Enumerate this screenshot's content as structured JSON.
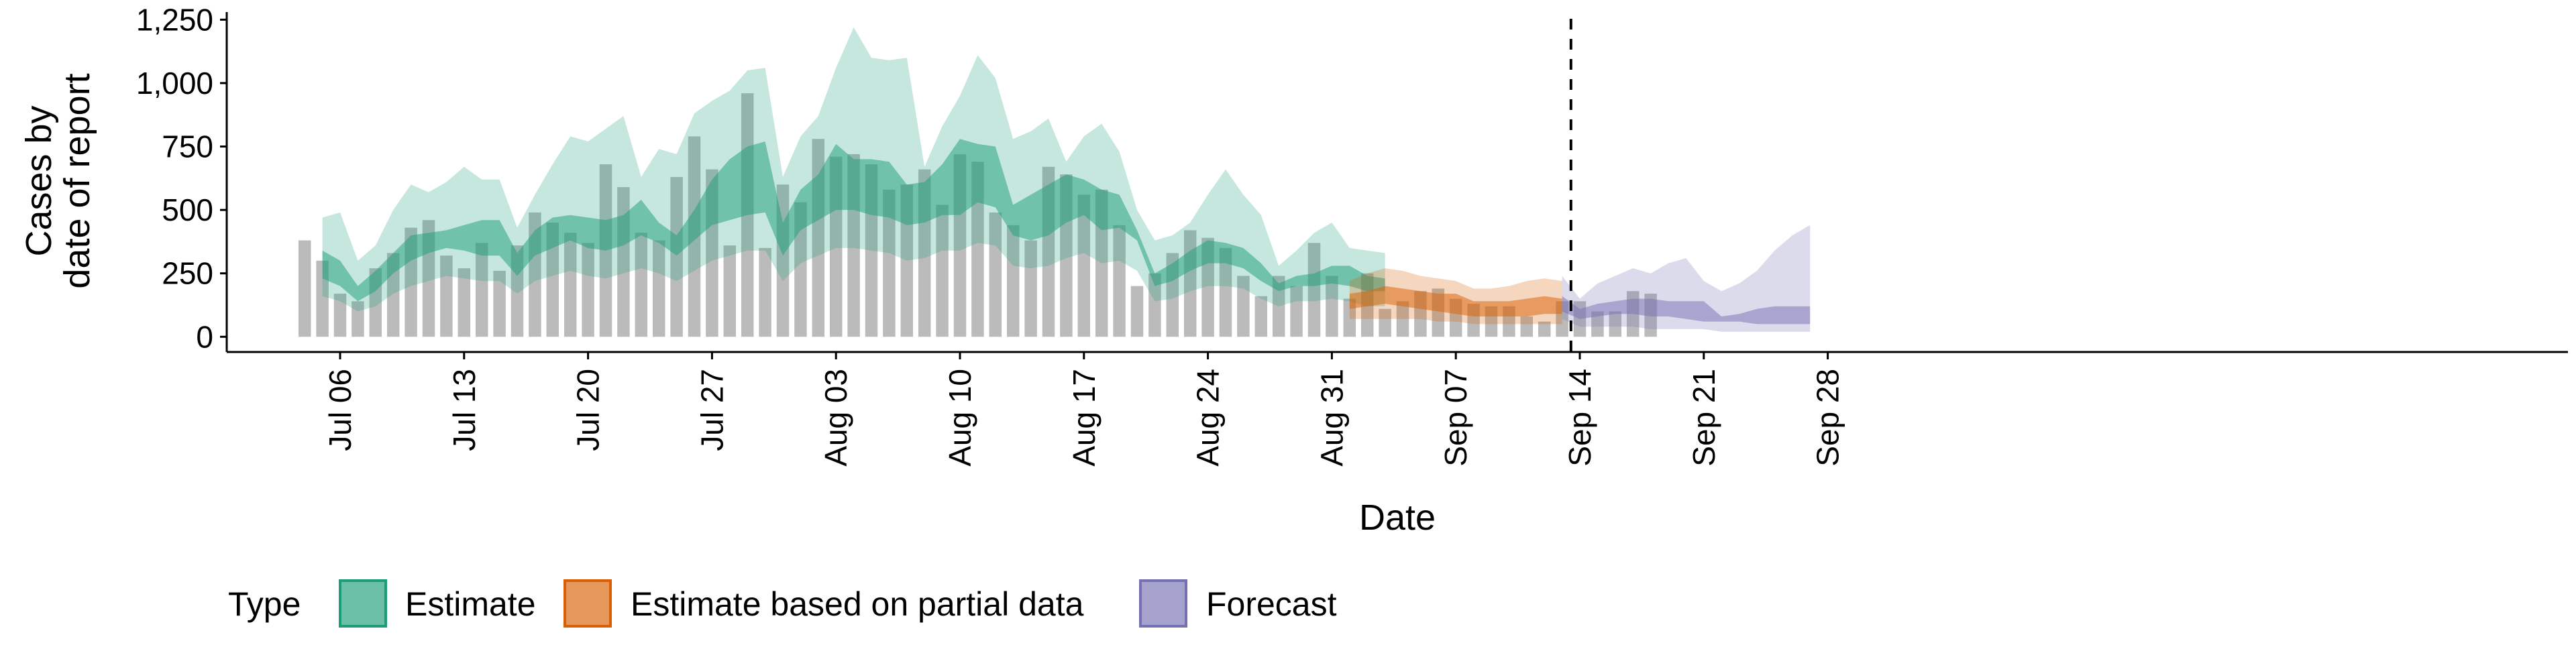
{
  "chart_data": {
    "type": "bar",
    "xlabel": "Date",
    "ylabel_lines": [
      "Cases by",
      "date of report"
    ],
    "ylim": [
      -60,
      1280
    ],
    "yticks": [
      0,
      250,
      500,
      750,
      1000,
      1250
    ],
    "ytick_labels": [
      "0",
      "250",
      "500",
      "750",
      "1,000",
      "1,250"
    ],
    "x_start": "2020-07-04",
    "xlim": [
      "2020-07-01",
      "2020-09-30"
    ],
    "xticks": [
      {
        "date": "2020-07-06",
        "label": "Jul 06"
      },
      {
        "date": "2020-07-13",
        "label": "Jul 13"
      },
      {
        "date": "2020-07-20",
        "label": "Jul 20"
      },
      {
        "date": "2020-07-27",
        "label": "Jul 27"
      },
      {
        "date": "2020-08-03",
        "label": "Aug 03"
      },
      {
        "date": "2020-08-10",
        "label": "Aug 10"
      },
      {
        "date": "2020-08-17",
        "label": "Aug 17"
      },
      {
        "date": "2020-08-24",
        "label": "Aug 24"
      },
      {
        "date": "2020-08-31",
        "label": "Aug 31"
      },
      {
        "date": "2020-09-07",
        "label": "Sep 07"
      },
      {
        "date": "2020-09-14",
        "label": "Sep 14"
      },
      {
        "date": "2020-09-21",
        "label": "Sep 21"
      },
      {
        "date": "2020-09-28",
        "label": "Sep 28"
      }
    ],
    "vline_date": "2020-09-13",
    "bars": [
      380,
      300,
      170,
      140,
      270,
      330,
      430,
      460,
      320,
      270,
      370,
      260,
      360,
      490,
      450,
      410,
      370,
      680,
      590,
      410,
      380,
      630,
      790,
      660,
      360,
      960,
      350,
      600,
      530,
      780,
      710,
      720,
      680,
      580,
      600,
      660,
      520,
      720,
      690,
      490,
      440,
      380,
      670,
      640,
      560,
      580,
      440,
      200,
      250,
      330,
      420,
      390,
      350,
      240,
      160,
      240,
      200,
      370,
      240,
      150,
      250,
      110,
      140,
      180,
      190,
      150,
      130,
      120,
      120,
      80,
      60,
      140,
      140,
      100,
      100,
      180,
      170
    ],
    "series": [
      {
        "name": "Estimate",
        "color": "#1B9E77",
        "start": "2020-07-05",
        "inner_lower": [
          230,
          200,
          140,
          180,
          250,
          300,
          330,
          350,
          340,
          320,
          320,
          240,
          320,
          350,
          380,
          350,
          340,
          360,
          400,
          370,
          320,
          380,
          440,
          460,
          480,
          490,
          320,
          420,
          460,
          500,
          500,
          480,
          470,
          440,
          450,
          480,
          480,
          530,
          510,
          400,
          380,
          400,
          450,
          480,
          420,
          430,
          380,
          200,
          220,
          260,
          290,
          290,
          270,
          220,
          180,
          200,
          200,
          210,
          200,
          180,
          180
        ],
        "inner_upper": [
          340,
          300,
          200,
          260,
          330,
          400,
          410,
          420,
          440,
          460,
          460,
          330,
          420,
          470,
          480,
          470,
          460,
          480,
          540,
          450,
          400,
          500,
          620,
          700,
          750,
          770,
          450,
          580,
          640,
          760,
          700,
          700,
          690,
          600,
          610,
          680,
          780,
          760,
          750,
          520,
          560,
          600,
          640,
          620,
          580,
          560,
          420,
          250,
          290,
          340,
          380,
          370,
          350,
          290,
          210,
          240,
          250,
          280,
          280,
          240,
          230
        ],
        "outer_lower": [
          160,
          140,
          100,
          120,
          170,
          200,
          220,
          240,
          230,
          220,
          220,
          170,
          220,
          240,
          260,
          240,
          230,
          250,
          270,
          250,
          220,
          260,
          300,
          320,
          340,
          340,
          220,
          290,
          320,
          350,
          350,
          340,
          330,
          300,
          310,
          340,
          340,
          370,
          360,
          280,
          270,
          280,
          310,
          330,
          290,
          300,
          260,
          140,
          150,
          180,
          200,
          200,
          190,
          150,
          120,
          140,
          140,
          150,
          140,
          120,
          120
        ],
        "outer_upper": [
          470,
          490,
          300,
          360,
          500,
          600,
          570,
          610,
          670,
          620,
          620,
          430,
          560,
          680,
          790,
          770,
          820,
          870,
          630,
          740,
          720,
          880,
          930,
          970,
          1050,
          1060,
          630,
          790,
          870,
          1060,
          1220,
          1100,
          1090,
          1100,
          670,
          830,
          950,
          1110,
          1020,
          780,
          810,
          860,
          690,
          790,
          840,
          730,
          500,
          380,
          400,
          450,
          560,
          660,
          560,
          480,
          280,
          340,
          410,
          450,
          350,
          340,
          330
        ]
      },
      {
        "name": "Estimate based on partial data",
        "color": "#D95F02",
        "start": "2020-09-01",
        "inner_lower": [
          110,
          120,
          130,
          120,
          110,
          100,
          90,
          80,
          80,
          80,
          80,
          90,
          90
        ],
        "inner_upper": [
          170,
          180,
          200,
          190,
          180,
          170,
          170,
          140,
          140,
          140,
          150,
          160,
          150
        ],
        "outer_lower": [
          70,
          70,
          70,
          70,
          70,
          60,
          60,
          50,
          50,
          50,
          50,
          50,
          50
        ],
        "outer_upper": [
          220,
          250,
          270,
          260,
          240,
          230,
          220,
          190,
          190,
          200,
          220,
          230,
          220
        ]
      },
      {
        "name": "Forecast",
        "color": "#7570B3",
        "start": "2020-09-13",
        "inner_lower": [
          100,
          70,
          80,
          90,
          90,
          80,
          80,
          70,
          60,
          60,
          60,
          50,
          50,
          50,
          50
        ],
        "inner_upper": [
          160,
          110,
          130,
          140,
          150,
          150,
          140,
          140,
          140,
          80,
          90,
          110,
          120,
          120,
          120
        ],
        "outer_lower": [
          70,
          40,
          40,
          40,
          40,
          30,
          30,
          30,
          30,
          20,
          20,
          20,
          20,
          20,
          20
        ],
        "outer_upper": [
          240,
          150,
          210,
          240,
          270,
          250,
          290,
          310,
          220,
          180,
          210,
          260,
          340,
          400,
          440
        ]
      }
    ],
    "legend": {
      "position": "bottom",
      "title": "Type",
      "items": [
        {
          "label": "Estimate",
          "color": "#1B9E77"
        },
        {
          "label": "Estimate based on partial data",
          "color": "#D95F02"
        },
        {
          "label": "Forecast",
          "color": "#7570B3"
        }
      ]
    }
  }
}
